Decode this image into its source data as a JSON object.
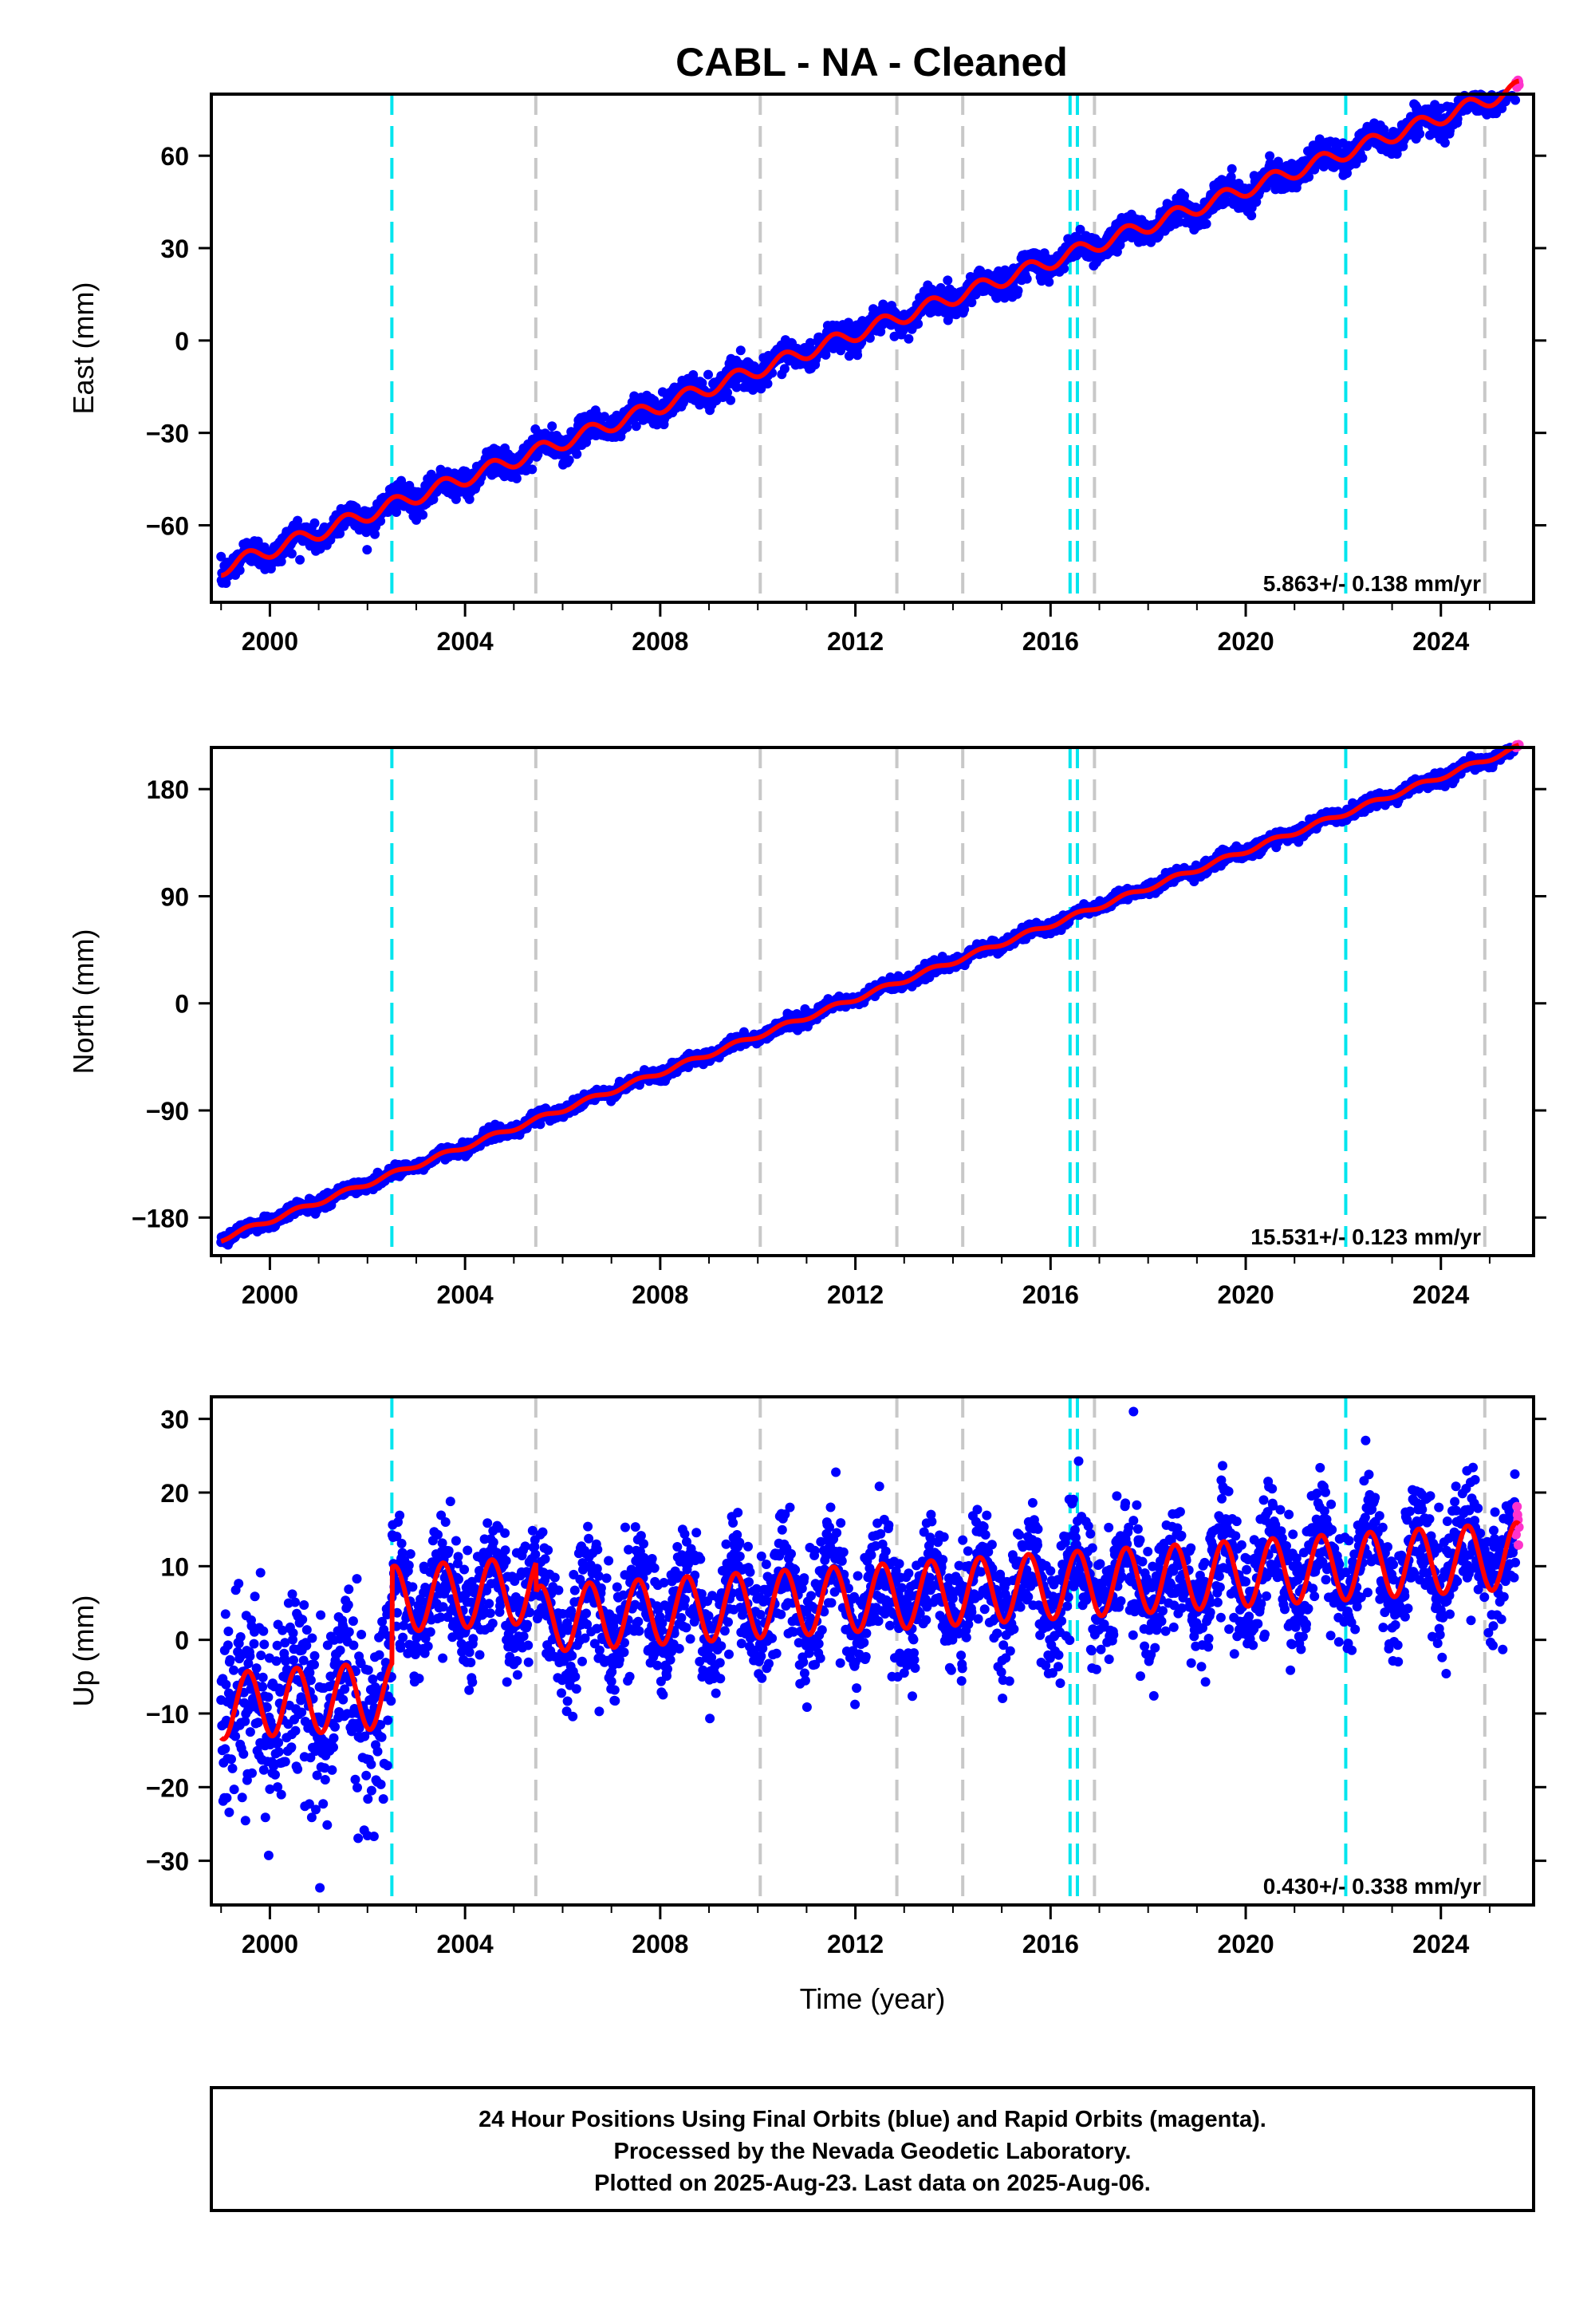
{
  "title": "CABL  - NA - Cleaned",
  "footer": {
    "line1": "24 Hour Positions Using Final Orbits (blue) and Rapid Orbits (magenta).",
    "line2": "Processed by the Nevada Geodetic Laboratory.",
    "line3": "Plotted on 2025-Aug-23. Last data on 2025-Aug-06."
  },
  "colors": {
    "final_orbits": "#0000ff",
    "rapid_orbits": "#ff33cc",
    "model": "#ff0000",
    "equipment_change": "#00e5ee",
    "other_event": "#c8c8c8"
  },
  "chart_data": [
    {
      "type": "scatter",
      "panel": "east",
      "ylabel": "East (mm)",
      "xlabel": "",
      "xlim": [
        1998.8,
        2025.9
      ],
      "ylim": [
        -85,
        80
      ],
      "x_ticks": [
        "2000",
        "2004",
        "2008",
        "2012",
        "2016",
        "2020",
        "2024"
      ],
      "y_ticks": [
        "60",
        "30",
        "0",
        "−30",
        "−60"
      ],
      "rate_label": "5.863+/- 0.138 mm/yr",
      "model": {
        "start_year": 1999.0,
        "end_year": 2025.6,
        "start_value": -74,
        "rate": 5.863,
        "annual_amplitude": 2.4,
        "scatter": 2.2
      },
      "offsets": [],
      "equipment_changes": [
        2002.5,
        2016.4,
        2016.55,
        2022.05
      ],
      "other_events": [
        2005.45,
        2010.05,
        2012.85,
        2014.2,
        2016.9,
        2024.9
      ],
      "grid": false
    },
    {
      "type": "scatter",
      "panel": "north",
      "ylabel": "North (mm)",
      "xlabel": "",
      "xlim": [
        1998.8,
        2025.9
      ],
      "ylim": [
        -212,
        215
      ],
      "x_ticks": [
        "2000",
        "2004",
        "2008",
        "2012",
        "2016",
        "2020",
        "2024"
      ],
      "y_ticks": [
        "180",
        "90",
        "0",
        "−90",
        "−180"
      ],
      "rate_label": "15.531+/- 0.123 mm/yr",
      "model": {
        "start_year": 1999.0,
        "end_year": 2025.6,
        "start_value": -198,
        "rate": 15.531,
        "annual_amplitude": 2.0,
        "scatter": 2.5
      },
      "offsets": [],
      "equipment_changes": [
        2002.5,
        2016.4,
        2016.55,
        2022.05
      ],
      "other_events": [
        2005.45,
        2010.05,
        2012.85,
        2014.2,
        2016.9,
        2024.9
      ],
      "grid": false
    },
    {
      "type": "scatter",
      "panel": "up",
      "ylabel": "Up (mm)",
      "xlabel": "Time (year)",
      "xlim": [
        1998.8,
        2025.9
      ],
      "ylim": [
        -36,
        33
      ],
      "x_ticks": [
        "2000",
        "2004",
        "2008",
        "2012",
        "2016",
        "2020",
        "2024"
      ],
      "y_ticks": [
        "30",
        "20",
        "10",
        "0",
        "−10",
        "−20",
        "−30"
      ],
      "rate_label": "0.430+/- 0.338 mm/yr",
      "model": {
        "start_year": 1999.0,
        "end_year": 2025.6,
        "start_value": -9,
        "rate": 0.43,
        "annual_amplitude": 4.5,
        "scatter": 4.0
      },
      "offsets": [
        {
          "year": 2002.5,
          "value": 13
        },
        {
          "year": 2005.45,
          "value": -4
        }
      ],
      "equipment_changes": [
        2002.5,
        2016.4,
        2016.55,
        2022.05
      ],
      "other_events": [
        2005.45,
        2010.05,
        2012.85,
        2014.2,
        2016.9,
        2024.9
      ],
      "outliers": [
        {
          "x": 2017.7,
          "y": 31
        }
      ],
      "grid": false
    }
  ]
}
